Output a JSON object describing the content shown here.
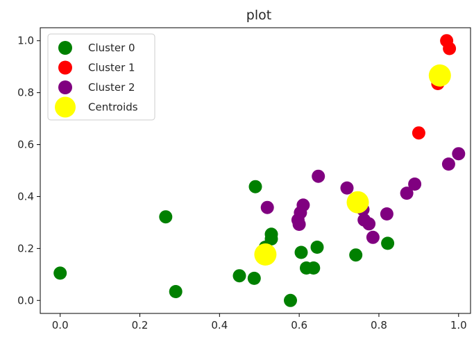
{
  "chart_data": {
    "type": "scatter",
    "title": "plot",
    "xlabel": "",
    "ylabel": "",
    "xlim": [
      -0.05,
      1.03
    ],
    "ylim": [
      -0.05,
      1.05
    ],
    "xticks": [
      0.0,
      0.2,
      0.4,
      0.6,
      0.8,
      1.0
    ],
    "xtick_labels": [
      "0.0",
      "0.2",
      "0.4",
      "0.6",
      "0.8",
      "1.0"
    ],
    "yticks": [
      0.0,
      0.2,
      0.4,
      0.6,
      0.8,
      1.0
    ],
    "ytick_labels": [
      "0.0",
      "0.2",
      "0.4",
      "0.6",
      "0.8",
      "1.0"
    ],
    "grid": false,
    "legend_position": "top-left",
    "series": [
      {
        "name": "Cluster 0",
        "color": "#008000",
        "marker": "circle-small",
        "points": [
          [
            0.0,
            0.105
          ],
          [
            0.265,
            0.322
          ],
          [
            0.29,
            0.034
          ],
          [
            0.45,
            0.095
          ],
          [
            0.487,
            0.085
          ],
          [
            0.49,
            0.438
          ],
          [
            0.53,
            0.255
          ],
          [
            0.53,
            0.237
          ],
          [
            0.515,
            0.205
          ],
          [
            0.578,
            0.0
          ],
          [
            0.605,
            0.185
          ],
          [
            0.618,
            0.125
          ],
          [
            0.636,
            0.125
          ],
          [
            0.645,
            0.205
          ],
          [
            0.742,
            0.175
          ],
          [
            0.822,
            0.22
          ]
        ]
      },
      {
        "name": "Cluster 1",
        "color": "#ff0000",
        "marker": "circle-small",
        "points": [
          [
            0.97,
            1.0
          ],
          [
            0.977,
            0.97
          ],
          [
            0.948,
            0.835
          ],
          [
            0.9,
            0.645
          ]
        ]
      },
      {
        "name": "Cluster 2",
        "color": "#800080",
        "marker": "circle-small",
        "points": [
          [
            0.52,
            0.358
          ],
          [
            0.597,
            0.31
          ],
          [
            0.6,
            0.293
          ],
          [
            0.603,
            0.338
          ],
          [
            0.61,
            0.367
          ],
          [
            0.648,
            0.478
          ],
          [
            0.72,
            0.433
          ],
          [
            0.76,
            0.35
          ],
          [
            0.763,
            0.31
          ],
          [
            0.775,
            0.295
          ],
          [
            0.785,
            0.243
          ],
          [
            0.82,
            0.333
          ],
          [
            0.87,
            0.413
          ],
          [
            0.89,
            0.448
          ],
          [
            0.975,
            0.525
          ],
          [
            1.0,
            0.565
          ]
        ]
      },
      {
        "name": "Centroids",
        "color": "#ffff00",
        "marker": "circle-large",
        "points": [
          [
            0.515,
            0.177
          ],
          [
            0.747,
            0.378
          ],
          [
            0.953,
            0.866
          ]
        ]
      }
    ]
  }
}
